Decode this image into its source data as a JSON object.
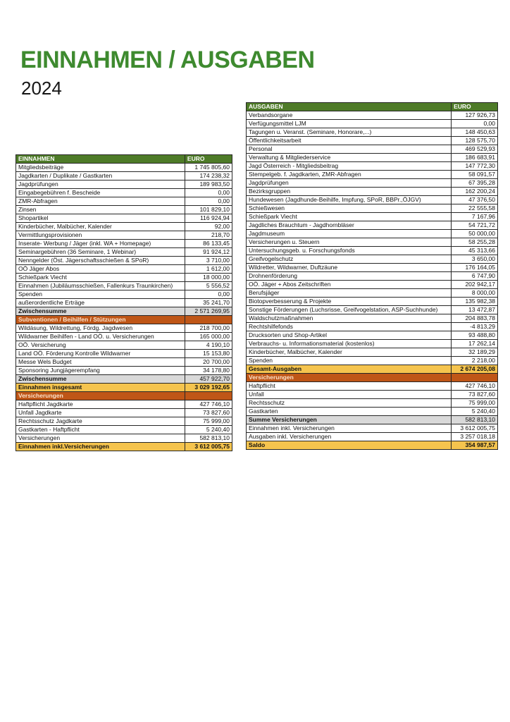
{
  "page": {
    "title": "EINNAHMEN / AUSGABEN",
    "subtitle": "2024"
  },
  "colors": {
    "title_green": "#3e8a2f",
    "table_header_green": "#4e7b28",
    "section_orange": "#bf5617",
    "section_text": "#fbe3cc",
    "subtotal_gray": "#d9d9d9",
    "total_gold": "#f5c44e"
  },
  "tables": {
    "einnahmen": {
      "header": {
        "label": "EINNAHMEN",
        "value": "EURO"
      },
      "rows": [
        {
          "type": "normal",
          "label": "Mitgliedsbeiträge",
          "value": "1 745 805,60"
        },
        {
          "type": "normal",
          "label": "Jagdkarten / Duplikate / Gastkarten",
          "value": "174 238,32"
        },
        {
          "type": "normal",
          "label": "Jagdprüfungen",
          "value": "189 983,50"
        },
        {
          "type": "normal",
          "label": "Eingabegebühren f. Bescheide",
          "value": "0,00"
        },
        {
          "type": "normal",
          "label": "ZMR-Abfragen",
          "value": "0,00"
        },
        {
          "type": "normal",
          "label": "Zinsen",
          "value": "101 829,10"
        },
        {
          "type": "normal",
          "label": "Shopartikel",
          "value": "116 924,94"
        },
        {
          "type": "normal",
          "label": "Kinderbücher, Malbücher, Kalender",
          "value": "92,00"
        },
        {
          "type": "normal",
          "label": "Vermittlungsprovisionen",
          "value": "218,70"
        },
        {
          "type": "normal",
          "label": "Inserate- Werbung / Jäger   (inkl. WA + Homepage)",
          "value": "86 133,45"
        },
        {
          "type": "normal",
          "label": "Seminargebühren (36 Seminare, 1  Webinar)",
          "value": "91 924,12"
        },
        {
          "type": "normal",
          "label": "Nenngelder (Öst. Jägerschaftsschießen & SPoR)",
          "value": "3 710,00"
        },
        {
          "type": "normal",
          "label": "OÖ Jäger Abos",
          "value": "1 612,00"
        },
        {
          "type": "normal",
          "label": "Schießpark Viecht",
          "value": "18 000,00"
        },
        {
          "type": "normal",
          "label": "Einnahmen (Jubiläumsschießen, Fallenkurs Traunkirchen)",
          "value": "5 556,52"
        },
        {
          "type": "normal",
          "label": "Spenden",
          "value": "0,00"
        },
        {
          "type": "normal",
          "label": "außerordentliche Erträge",
          "value": "35 241,70"
        },
        {
          "type": "subtotal",
          "label": "Zwischensumme",
          "value": "2 571 269,95"
        },
        {
          "type": "section",
          "label": "Subventionen / Beihilfen / Stützungen",
          "value": ""
        },
        {
          "type": "normal",
          "label": "Wildäsung, Wildrettung, Fördg. Jagdwesen",
          "value": "218 700,00"
        },
        {
          "type": "normal",
          "label": "Wildwarner Beihilfen - Land OÖ. u. Versicherungen",
          "value": "165 000,00"
        },
        {
          "type": "normal",
          "label": "OÖ. Versicherung",
          "value": "4 190,10"
        },
        {
          "type": "normal",
          "label": "Land OÖ. Förderung Kontrolle Wildwarner",
          "value": "15 153,80"
        },
        {
          "type": "normal",
          "label": "Messe Wels Budget",
          "value": "20 700,00"
        },
        {
          "type": "normal",
          "label": "Sponsoring Jungjägerempfang",
          "value": "34 178,80"
        },
        {
          "type": "subtotal",
          "label": "Zwischensumme",
          "value": "457 922,70"
        },
        {
          "type": "total",
          "label": "Einnahmen insgesamt",
          "value": "3 029 192,65"
        },
        {
          "type": "section",
          "label": "Versicherungen",
          "value": ""
        },
        {
          "type": "normal",
          "label": "Haftpflicht  Jagdkarte",
          "value": "427 746,10"
        },
        {
          "type": "normal",
          "label": "Unfall Jagdkarte",
          "value": "73 827,60"
        },
        {
          "type": "normal",
          "label": "Rechtsschutz Jagdkarte",
          "value": "75 999,00"
        },
        {
          "type": "normal",
          "label": "Gastkarten - Haftpflicht",
          "value": "5 240,40"
        },
        {
          "type": "normal",
          "label": "Versicherungen",
          "value": "582 813,10"
        },
        {
          "type": "total",
          "label": "Einnahmen inkl.Versicherungen",
          "value": "3 612 005,75"
        }
      ]
    },
    "ausgaben": {
      "header": {
        "label": "AUSGABEN",
        "value": "EURO"
      },
      "rows": [
        {
          "type": "normal",
          "label": "Verbandsorgane",
          "value": "127 926,73"
        },
        {
          "type": "normal",
          "label": "Verfügungsmittel LJM",
          "value": "0,00"
        },
        {
          "type": "normal",
          "label": "Tagungen u. Veranst.   (Seminare, Honorare,...)",
          "value": "148 450,63"
        },
        {
          "type": "normal",
          "label": "Öffentlichkeitsarbeit",
          "value": "128 575,70"
        },
        {
          "type": "normal",
          "label": "Personal",
          "value": "469 529,93"
        },
        {
          "type": "normal",
          "label": "Verwaltung & Mitgliederservice",
          "value": "186 683,91"
        },
        {
          "type": "normal",
          "label": "Jagd Österreich - Mitgliedsbeitrag",
          "value": "147 772,30"
        },
        {
          "type": "normal",
          "label": "Stempelgeb. f. Jagdkarten, ZMR-Abfragen",
          "value": "58 091,57"
        },
        {
          "type": "normal",
          "label": "Jagdprüfungen",
          "value": "67 395,28"
        },
        {
          "type": "normal",
          "label": "Bezirksgruppen",
          "value": "162 200,24"
        },
        {
          "type": "normal",
          "label": "Hundewesen (Jagdhunde-Beihilfe, Impfung, SPoR, BBPr.,ÖJGV)",
          "value": "47 376,50"
        },
        {
          "type": "normal",
          "label": "Schießwesen",
          "value": "22 555,58"
        },
        {
          "type": "normal",
          "label": "Schießpark Viecht",
          "value": "7 167,96"
        },
        {
          "type": "normal",
          "label": "Jagdliches Brauchtum - Jagdhornbläser",
          "value": "54 721,72"
        },
        {
          "type": "normal",
          "label": "Jagdmuseum",
          "value": "50 000,00"
        },
        {
          "type": "normal",
          "label": "Versicherungen u. Steuern",
          "value": "58 255,28"
        },
        {
          "type": "normal",
          "label": "Untersuchungsgeb. u. Forschungsfonds",
          "value": "45 313,66"
        },
        {
          "type": "normal",
          "label": "Greifvogelschutz",
          "value": "3 650,00"
        },
        {
          "type": "normal",
          "label": "Wildretter, Wildwarner, Duftzäune",
          "value": "176 164,05"
        },
        {
          "type": "normal",
          "label": "Drohnenförderung",
          "value": "6 747,90"
        },
        {
          "type": "normal",
          "label": "OÖ. Jäger + Abos Zeitschriften",
          "value": "202 942,17"
        },
        {
          "type": "normal",
          "label": "Berufsjäger",
          "value": "8 000,00"
        },
        {
          "type": "normal",
          "label": "Biotopverbesserung & Projekte",
          "value": "135 982,38"
        },
        {
          "type": "normal",
          "label": "Sonstige Förderungen (Luchsrisse, Greifvogelstation, ASP-Suchhunde)",
          "value": "13 472,87"
        },
        {
          "type": "normal",
          "label": "Waldschutzmaßnahmen",
          "value": "204 883,78"
        },
        {
          "type": "normal",
          "label": "Rechtshilfefonds",
          "value": "-4 813,29"
        },
        {
          "type": "normal",
          "label": "Drucksorten und Shop-Artikel",
          "value": "93 488,80"
        },
        {
          "type": "normal",
          "label": "Verbrauchs- u. Informationsmaterial (kostenlos)",
          "value": "17 262,14"
        },
        {
          "type": "normal",
          "label": "Kinderbücher, Malbücher, Kalender",
          "value": "32 189,29"
        },
        {
          "type": "normal",
          "label": "Spenden",
          "value": "2 218,00"
        },
        {
          "type": "total",
          "label": "Gesamt-Ausgaben",
          "value": "2 674 205,08"
        },
        {
          "type": "section",
          "label": "Versicherungen",
          "value": ""
        },
        {
          "type": "normal",
          "label": "Haftpflicht",
          "value": "427 746,10"
        },
        {
          "type": "normal",
          "label": "Unfall",
          "value": "73 827,60"
        },
        {
          "type": "normal",
          "label": "Rechtsschutz",
          "value": "75 999,00"
        },
        {
          "type": "normal",
          "label": "Gastkarten",
          "value": "5 240,40"
        },
        {
          "type": "subtotal",
          "label": "Summe Versicherungen",
          "value": "582 813,10"
        },
        {
          "type": "normal",
          "label": "Einnahmen inkl. Versicherungen",
          "value": "3 612 005,75"
        },
        {
          "type": "normal",
          "label": "Ausgaben inkl. Versicherungen",
          "value": "3 257 018,18"
        },
        {
          "type": "total",
          "label": "Saldo",
          "value": "354 987,57"
        }
      ]
    }
  }
}
